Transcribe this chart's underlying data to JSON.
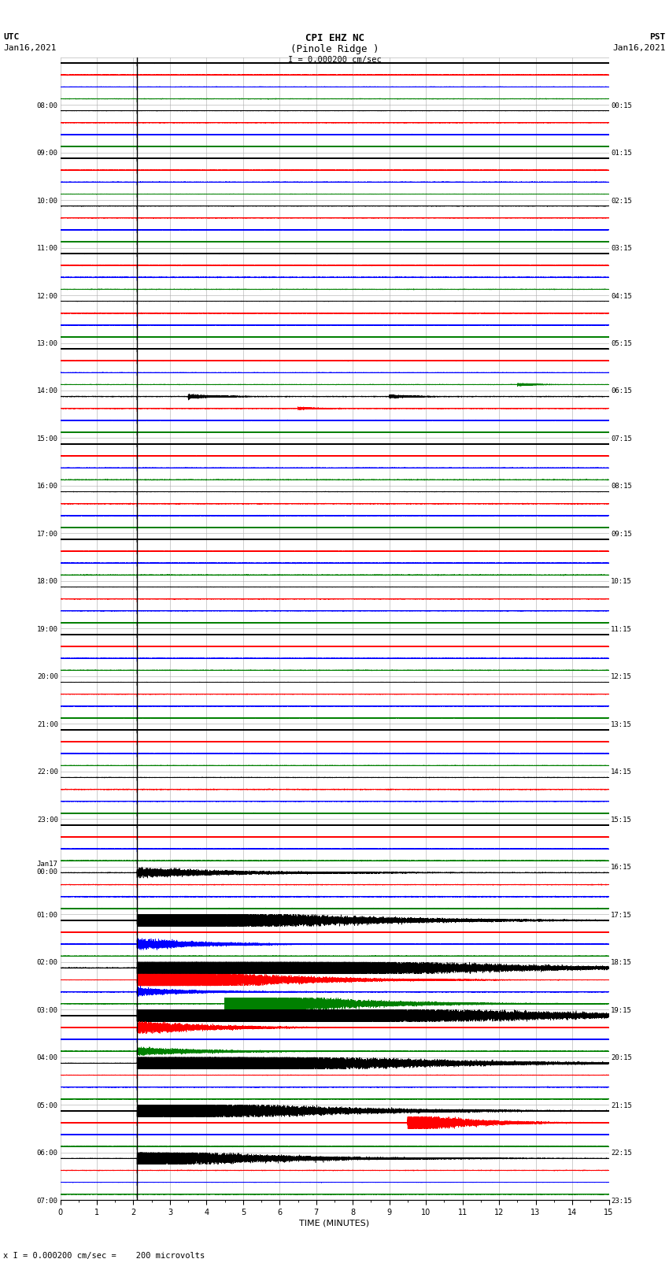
{
  "title_line1": "CPI EHZ NC",
  "title_line2": "(Pinole Ridge )",
  "title_line3": "I = 0.000200 cm/sec",
  "left_header_line1": "UTC",
  "left_header_line2": "Jan16,2021",
  "right_header_line1": "PST",
  "right_header_line2": "Jan16,2021",
  "bottom_label": "TIME (MINUTES)",
  "bottom_note": "x I = 0.000200 cm/sec =    200 microvolts",
  "background_color": "#ffffff",
  "trace_colors": [
    "black",
    "red",
    "blue",
    "green"
  ],
  "xlabel_ticks": [
    0,
    1,
    2,
    3,
    4,
    5,
    6,
    7,
    8,
    9,
    10,
    11,
    12,
    13,
    14,
    15
  ],
  "utc_times_left": [
    "08:00",
    "09:00",
    "10:00",
    "11:00",
    "12:00",
    "13:00",
    "14:00",
    "15:00",
    "16:00",
    "17:00",
    "18:00",
    "19:00",
    "20:00",
    "21:00",
    "22:00",
    "23:00",
    "Jan17\n00:00",
    "01:00",
    "02:00",
    "03:00",
    "04:00",
    "05:00",
    "06:00",
    "07:00"
  ],
  "pst_times_right": [
    "00:15",
    "01:15",
    "02:15",
    "03:15",
    "04:15",
    "05:15",
    "06:15",
    "07:15",
    "08:15",
    "09:15",
    "10:15",
    "11:15",
    "12:15",
    "13:15",
    "14:15",
    "15:15",
    "16:15",
    "17:15",
    "18:15",
    "19:15",
    "20:15",
    "21:15",
    "22:15",
    "23:15"
  ],
  "num_rows": 24,
  "traces_per_row": 4,
  "minutes": 15,
  "sample_rate": 100,
  "noise_amp": 0.025,
  "eq_minute": 2.1,
  "vertical_line_minute": 2.1,
  "grid_color": "#aaaaaa",
  "grid_linewidth": 0.4
}
